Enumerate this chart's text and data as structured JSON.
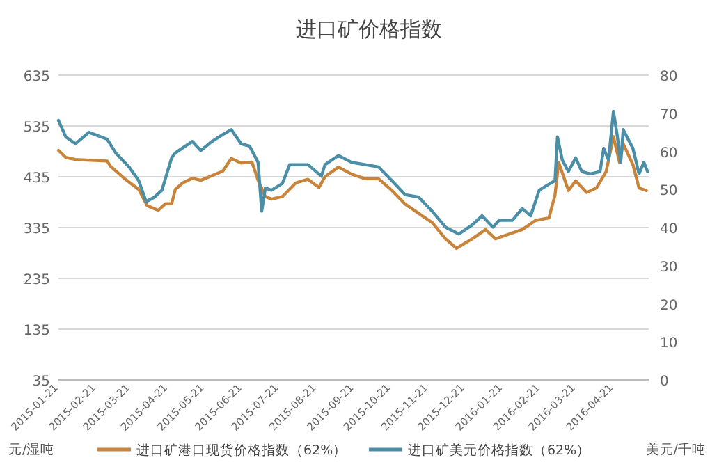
{
  "chart_data": {
    "type": "line",
    "title": "进口矿价格指数",
    "ylabel": "元/湿吨",
    "y2label": "美元/千吨",
    "xlim": [
      "2015-01-21",
      "2016-05-20"
    ],
    "xticks": [
      "2015-01-21",
      "2015-02-21",
      "2015-03-21",
      "2015-04-21",
      "2015-05-21",
      "2015-06-21",
      "2015-07-21",
      "2015-08-21",
      "2015-09-21",
      "2015-10-21",
      "2015-11-21",
      "2015-12-21",
      "2016-01-21",
      "2016-02-21",
      "2016-03-21",
      "2016-04-21"
    ],
    "ylim": [
      35,
      635
    ],
    "yticks": [
      35,
      135,
      235,
      335,
      435,
      535,
      635
    ],
    "y2lim": [
      0,
      80
    ],
    "y2ticks": [
      0,
      10,
      20,
      30,
      40,
      50,
      60,
      70,
      80
    ],
    "grid": "y",
    "legend": "bottom",
    "series": [
      {
        "name": "进口矿港口现货价格指数（62%）",
        "color": "#c8843a",
        "x": [
          "2015-01-21",
          "2015-01-27",
          "2015-02-04",
          "2015-03-02",
          "2015-03-05",
          "2015-03-16",
          "2015-03-28",
          "2015-04-04",
          "2015-04-13",
          "2015-04-19",
          "2015-04-24",
          "2015-04-27",
          "2015-05-03",
          "2015-05-11",
          "2015-05-18",
          "2015-05-25",
          "2015-06-05",
          "2015-06-12",
          "2015-06-20",
          "2015-06-29",
          "2015-07-04",
          "2015-07-10",
          "2015-07-15",
          "2015-07-24",
          "2015-08-04",
          "2015-08-14",
          "2015-08-23",
          "2015-08-28",
          "2015-09-08",
          "2015-09-19",
          "2015-09-30",
          "2015-10-11",
          "2015-10-22",
          "2015-11-02",
          "2015-11-13",
          "2015-11-24",
          "2015-12-05",
          "2015-12-14",
          "2015-12-27",
          "2016-01-07",
          "2016-01-15",
          "2016-01-26",
          "2016-02-06",
          "2016-02-17",
          "2016-02-28",
          "2016-03-04",
          "2016-03-07",
          "2016-03-15",
          "2016-03-21",
          "2016-03-30",
          "2016-04-07",
          "2016-04-15",
          "2016-04-21",
          "2016-04-26",
          "2016-04-29",
          "2016-05-07",
          "2016-05-12",
          "2016-05-18"
        ],
        "values": [
          487,
          473,
          469,
          466,
          455,
          432,
          410,
          378,
          369,
          382,
          382,
          410,
          423,
          432,
          428,
          435,
          446,
          471,
          462,
          464,
          428,
          396,
          391,
          396,
          423,
          430,
          414,
          435,
          454,
          440,
          431,
          431,
          408,
          381,
          363,
          345,
          313,
          294,
          313,
          331,
          313,
          322,
          331,
          349,
          354,
          399,
          463,
          408,
          427,
          404,
          413,
          445,
          514,
          463,
          500,
          459,
          413,
          408
        ]
      },
      {
        "name": "进口矿美元价格指数（62%）",
        "color": "#4a8ea8",
        "axis": "y2",
        "x": [
          "2015-01-21",
          "2015-01-27",
          "2015-02-04",
          "2015-02-15",
          "2015-03-02",
          "2015-03-09",
          "2015-03-20",
          "2015-03-28",
          "2015-04-03",
          "2015-04-10",
          "2015-04-16",
          "2015-04-24",
          "2015-04-27",
          "2015-05-11",
          "2015-05-18",
          "2015-05-27",
          "2015-06-05",
          "2015-06-12",
          "2015-06-20",
          "2015-06-27",
          "2015-07-04",
          "2015-07-07",
          "2015-07-10",
          "2015-07-15",
          "2015-07-24",
          "2015-07-30",
          "2015-08-14",
          "2015-08-25",
          "2015-08-28",
          "2015-09-08",
          "2015-09-19",
          "2015-09-30",
          "2015-10-11",
          "2015-10-22",
          "2015-11-02",
          "2015-11-13",
          "2015-11-24",
          "2015-12-05",
          "2015-12-16",
          "2015-12-27",
          "2016-01-04",
          "2016-01-13",
          "2016-01-18",
          "2016-01-29",
          "2016-02-06",
          "2016-02-13",
          "2016-02-20",
          "2016-02-29",
          "2016-03-04",
          "2016-03-06",
          "2016-03-10",
          "2016-03-15",
          "2016-03-21",
          "2016-03-26",
          "2016-04-02",
          "2016-04-10",
          "2016-04-13",
          "2016-04-17",
          "2016-04-21",
          "2016-04-24",
          "2016-04-27",
          "2016-04-29",
          "2016-05-07",
          "2016-05-12",
          "2016-05-16",
          "2016-05-19"
        ],
        "values": [
          68.1,
          63.8,
          62.0,
          65.0,
          63.2,
          59.6,
          55.9,
          52.3,
          46.8,
          48.0,
          49.8,
          58.3,
          59.6,
          62.6,
          60.2,
          62.6,
          64.4,
          65.7,
          62.0,
          61.4,
          57.1,
          44.3,
          50.4,
          49.8,
          51.6,
          56.5,
          56.5,
          53.5,
          56.5,
          58.9,
          57.1,
          56.5,
          55.9,
          52.3,
          48.6,
          48.0,
          44.3,
          40.1,
          38.3,
          40.7,
          43.1,
          40.1,
          41.9,
          41.9,
          45.0,
          43.1,
          49.8,
          51.6,
          52.3,
          63.8,
          57.7,
          54.7,
          58.3,
          54.7,
          54.1,
          54.7,
          60.8,
          57.7,
          70.5,
          64.4,
          57.1,
          65.7,
          60.8,
          54.1,
          57.1,
          54.7
        ]
      }
    ]
  }
}
